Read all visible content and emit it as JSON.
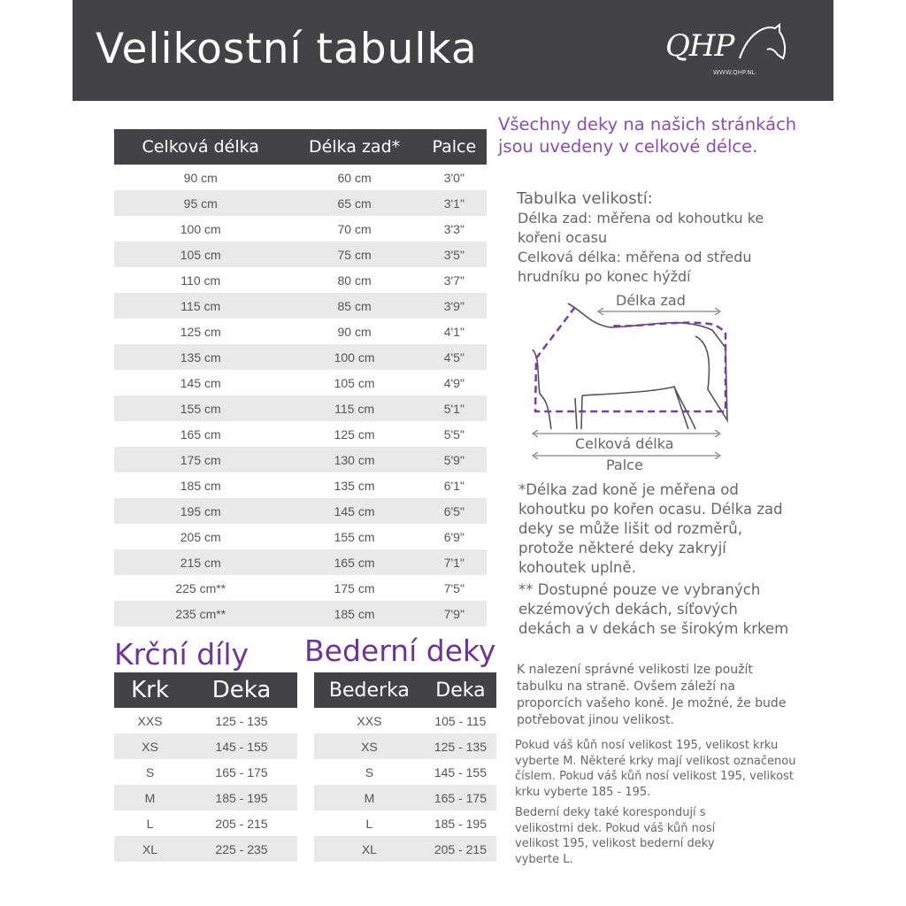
{
  "header": {
    "title": "Velikostní tabulka",
    "logo_text": "QHP",
    "logo_url": "WWW.QHP.NL"
  },
  "main_table": {
    "headers": [
      "Celková délka",
      "Délka zad*",
      "Palce"
    ],
    "rows": [
      [
        "90 cm",
        "60 cm",
        "3'0\""
      ],
      [
        "95 cm",
        "65 cm",
        "3'1\""
      ],
      [
        "100 cm",
        "70 cm",
        "3'3\""
      ],
      [
        "105 cm",
        "75 cm",
        "3'5\""
      ],
      [
        "110 cm",
        "80 cm",
        "3'7\""
      ],
      [
        "115 cm",
        "85 cm",
        "3'9\""
      ],
      [
        "125 cm",
        "90 cm",
        "4'1\""
      ],
      [
        "135 cm",
        "100 cm",
        "4'5\""
      ],
      [
        "145 cm",
        "105 cm",
        "4'9\""
      ],
      [
        "155 cm",
        "115 cm",
        "5'1\""
      ],
      [
        "165 cm",
        "125 cm",
        "5'5\""
      ],
      [
        "175 cm",
        "130 cm",
        "5'9\""
      ],
      [
        "185 cm",
        "135 cm",
        "6'1\""
      ],
      [
        "195 cm",
        "145 cm",
        "6'5\""
      ],
      [
        "205 cm",
        "155 cm",
        "6'9\""
      ],
      [
        "215 cm",
        "165 cm",
        "7'1\""
      ],
      [
        "225 cm**",
        "175 cm",
        "7'5\""
      ],
      [
        "235 cm**",
        "185 cm",
        "7'9\""
      ]
    ]
  },
  "neck": {
    "title": "Krční díly",
    "headers": [
      "Krk",
      "Deka"
    ],
    "rows": [
      [
        "XXS",
        "125 - 135"
      ],
      [
        "XS",
        "145 - 155"
      ],
      [
        "S",
        "165 - 175"
      ],
      [
        "M",
        "185 - 195"
      ],
      [
        "L",
        "205 - 215"
      ],
      [
        "XL",
        "225 - 235"
      ]
    ]
  },
  "lumbar": {
    "title": "Bederní deky",
    "headers": [
      "Bederka",
      "Deka"
    ],
    "rows": [
      [
        "XXS",
        "105 - 115"
      ],
      [
        "XS",
        "125 - 135"
      ],
      [
        "S",
        "145 - 155"
      ],
      [
        "M",
        "165 - 175"
      ],
      [
        "L",
        "185 - 195"
      ],
      [
        "XL",
        "205 - 215"
      ]
    ]
  },
  "info": {
    "intro": "Všechny deky na našich stránkách jsou uvedeny v celkové délce.",
    "size_title": "Tabulka velikostí:",
    "back_def": "Délka zad: měřena od kohoutku ke kořeni ocasu",
    "total_def": "Celková délka: měřena od středu hrudníku po konec hýždí",
    "diagram": {
      "back_label": "Délka zad",
      "total_label": "Celková délka",
      "inches_label": "Palce"
    },
    "note1": "*Délka zad koně je měřena od kohoutku po kořen ocasu. Délka zad deky se může lišit od rozměrů, protože některé deky zakryjí kohoutek uplně.",
    "note2": "** Dostupné pouze ve vybraných ekzémových dekách, síťových dekách a v dekách se širokým krkem",
    "note3": "K nalezení správné velikosti lze použít tabulku na straně. Ovšem záleží na proporcích vašeho koně. Je možné, že bude potřebovat jinou velikost.",
    "note4": "Pokud váš kůň nosí velikost 195, velikost krku vyberte M. Některé krky mají velikost označenou číslem. Pokud váš kůň nosí velikost 195, velikost krku vyberte 185 - 195.",
    "note5": "Bederní deky také korespondují s velikostmi dek. Pokud váš kůň nosí velikost 195, velikost bederní deky vyberte L."
  },
  "colors": {
    "header_bg": "#434345",
    "accent": "#7a3e9d",
    "stripe": "#e9e9e9"
  }
}
